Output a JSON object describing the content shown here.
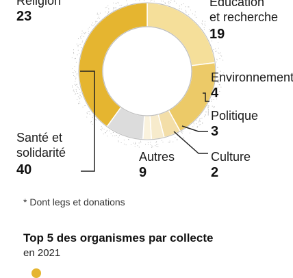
{
  "chart_data": {
    "type": "pie",
    "donut": true,
    "slices": [
      {
        "label": "Religion",
        "value": 23,
        "color": "#f5df9a"
      },
      {
        "label": "Éducation et recherche",
        "value": 19,
        "color": "#ecca68"
      },
      {
        "label": "Environnement",
        "value": 4,
        "color": "#f3dea8"
      },
      {
        "label": "Politique",
        "value": 3,
        "color": "#f7ebcc"
      },
      {
        "label": "Culture",
        "value": 2,
        "color": "#faf2dd"
      },
      {
        "label": "Autres",
        "value": 9,
        "color": "#dcdcdc"
      },
      {
        "label": "Santé et solidarité",
        "value": 40,
        "color": "#e5b530"
      }
    ],
    "labels": {
      "religion": {
        "line1": "Religion",
        "value": "23"
      },
      "education": {
        "line1": "Éducation",
        "line2": "et recherche",
        "value": "19"
      },
      "environnement": {
        "line1": "Environnement",
        "value": "4"
      },
      "politique": {
        "line1": "Politique",
        "value": "3"
      },
      "culture": {
        "line1": "Culture",
        "value": "2"
      },
      "autres": {
        "line1": "Autres",
        "value": "9"
      },
      "sante": {
        "line1": "Santé et",
        "line2": "solidarité",
        "value": "40"
      }
    }
  },
  "footnote": "* Dont legs et donations",
  "section": {
    "title": "Top 5 des organismes par collecte",
    "subtitle": "en 2021"
  },
  "colors": {
    "accent": "#e5b530",
    "ring_outline": "#bbbbbb",
    "leader": "#222222"
  }
}
